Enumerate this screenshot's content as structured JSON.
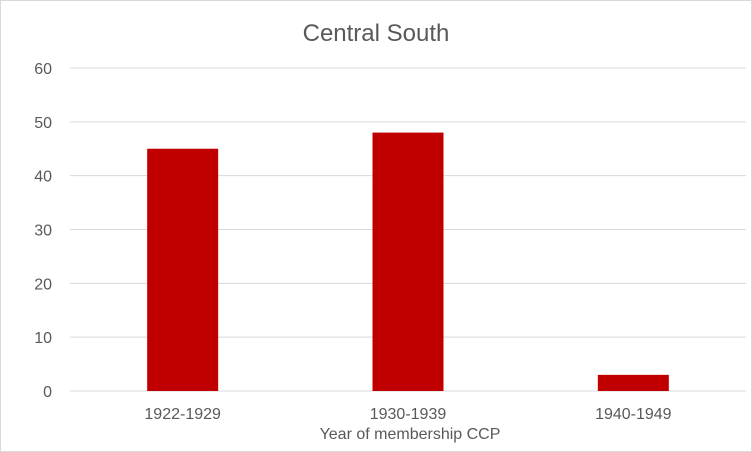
{
  "chart_data": {
    "type": "bar",
    "title": "Central South",
    "xlabel": "Year of membership CCP",
    "ylabel": "",
    "categories": [
      "1922-1929",
      "1930-1939",
      "1940-1949"
    ],
    "values": [
      45,
      48,
      3
    ],
    "ylim": [
      0,
      60
    ],
    "yticks": [
      0,
      10,
      20,
      30,
      40,
      50,
      60
    ],
    "grid": true,
    "legend": "none",
    "bar_color": "#c00000",
    "grid_color": "#d9d9d9"
  }
}
